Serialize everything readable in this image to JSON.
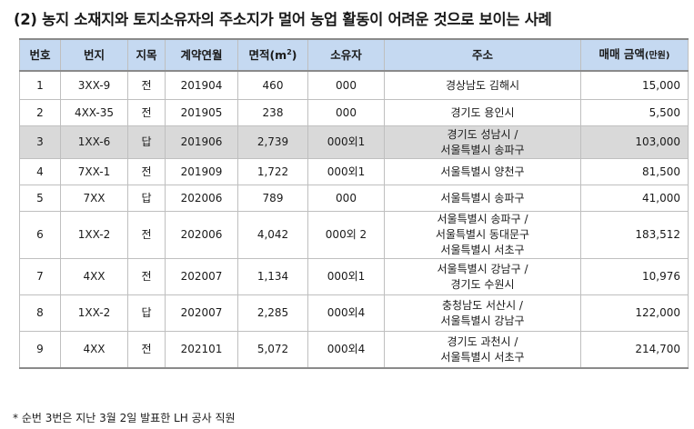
{
  "title": "(2) 농지 소재지와 토지소유자의 주소지가 멀어 농업 활동이 어려운 것으로 보이는 사례",
  "table": {
    "headers": {
      "no": "번호",
      "lot": "번지",
      "category": "지목",
      "contract": "계약연월",
      "area_label": "면적(m",
      "area_sup": "2",
      "area_close": ")",
      "owner": "소유자",
      "address": "주소",
      "price_label": "매매 금액",
      "price_unit": "(만원)"
    },
    "rows": [
      {
        "no": "1",
        "lot": "3XX-9",
        "category": "전",
        "contract": "201904",
        "area": "460",
        "owner": "000",
        "address": [
          "경상남도 김해시"
        ],
        "price": "15,000",
        "shaded": false
      },
      {
        "no": "2",
        "lot": "4XX-35",
        "category": "전",
        "contract": "201905",
        "area": "238",
        "owner": "000",
        "address": [
          "경기도 용인시"
        ],
        "price": "5,500",
        "shaded": false
      },
      {
        "no": "3",
        "lot": "1XX-6",
        "category": "답",
        "contract": "201906",
        "area": "2,739",
        "owner": "000외1",
        "address": [
          "경기도 성남시 /",
          "서울특별시 송파구"
        ],
        "price": "103,000",
        "shaded": true
      },
      {
        "no": "4",
        "lot": "7XX-1",
        "category": "전",
        "contract": "201909",
        "area": "1,722",
        "owner": "000외1",
        "address": [
          "서울특별시 양천구"
        ],
        "price": "81,500",
        "shaded": false
      },
      {
        "no": "5",
        "lot": "7XX",
        "category": "답",
        "contract": "202006",
        "area": "789",
        "owner": "000",
        "address": [
          "서울특별시 송파구"
        ],
        "price": "41,000",
        "shaded": false
      },
      {
        "no": "6",
        "lot": "1XX-2",
        "category": "전",
        "contract": "202006",
        "area": "4,042",
        "owner": "000외 2",
        "address": [
          "서울특별시 송파구 /",
          "서울특별시 동대문구",
          "서울특별시 서초구"
        ],
        "price": "183,512",
        "shaded": false
      },
      {
        "no": "7",
        "lot": "4XX",
        "category": "전",
        "contract": "202007",
        "area": "1,134",
        "owner": "000외1",
        "address": [
          "서울특별시 강남구 /",
          "경기도 수원시"
        ],
        "price": "10,976",
        "shaded": false
      },
      {
        "no": "8",
        "lot": "1XX-2",
        "category": "답",
        "contract": "202007",
        "area": "2,285",
        "owner": "000외4",
        "address": [
          "충청남도 서산시 /",
          "서울특별시 강남구"
        ],
        "price": "122,000",
        "shaded": false
      },
      {
        "no": "9",
        "lot": "4XX",
        "category": "전",
        "contract": "202101",
        "area": "5,072",
        "owner": "000외4",
        "address": [
          "경기도 과천시 /",
          "서울특별시 서초구"
        ],
        "price": "214,700",
        "shaded": false
      }
    ]
  },
  "footnote": "* 순번 3번은 지난 3월 2일 발표한 LH 공사 직원",
  "colors": {
    "header_bg": "#c5d9f1",
    "shaded_row_bg": "#d9d9d9",
    "border": "#bfbfbf"
  }
}
